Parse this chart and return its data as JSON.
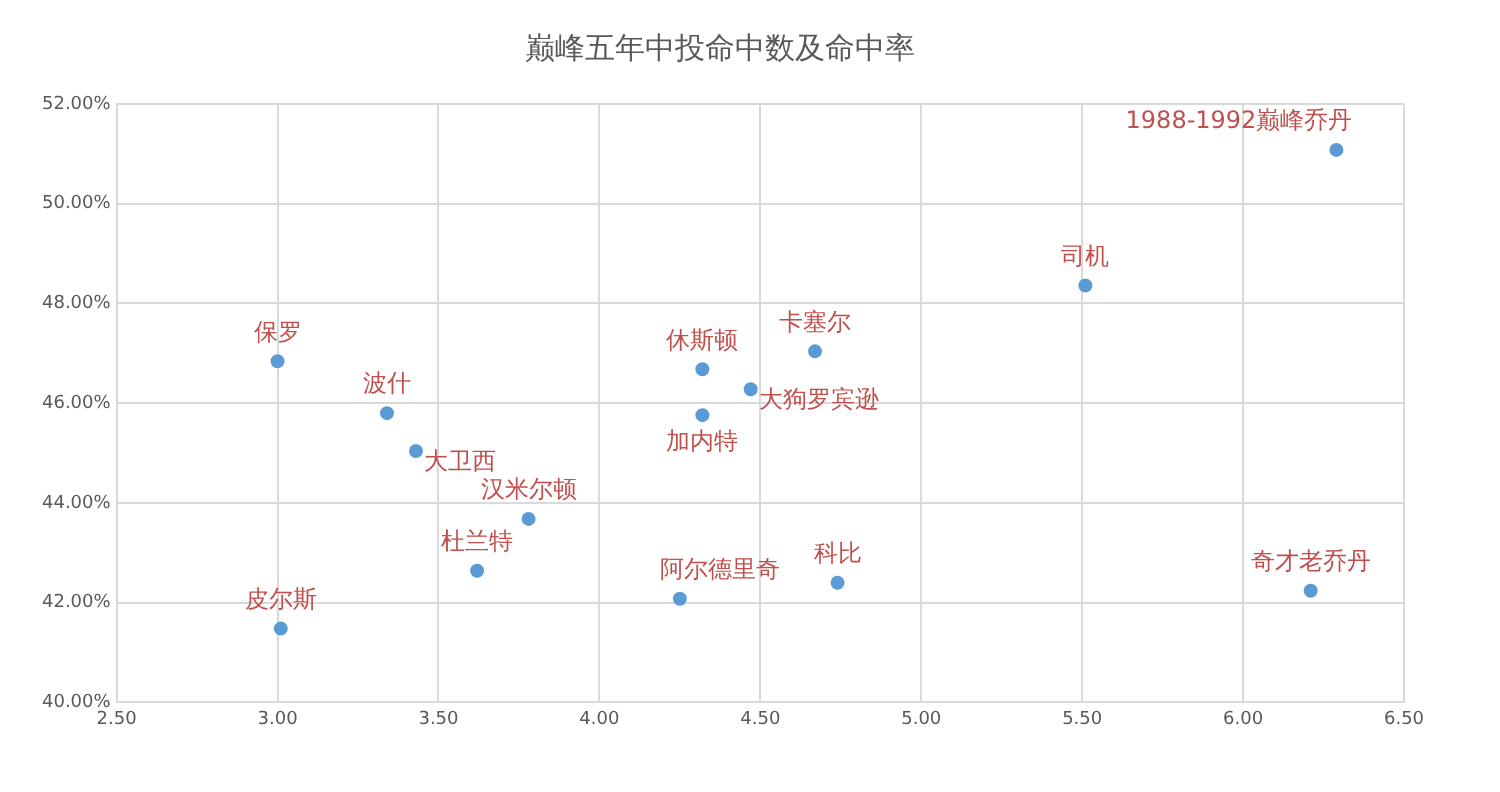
{
  "chart_data": {
    "type": "scatter",
    "title": "巅峰五年中投命中数及命中率",
    "x": [
      3.0,
      3.34,
      3.43,
      3.78,
      3.62,
      3.01,
      4.25,
      4.32,
      4.32,
      4.47,
      4.67,
      4.74,
      5.51,
      6.29,
      6.21
    ],
    "values": [
      46.84,
      45.8,
      45.04,
      43.68,
      42.64,
      41.48,
      42.08,
      46.68,
      45.76,
      46.28,
      47.04,
      42.4,
      48.36,
      51.08,
      42.24
    ],
    "color": "#5b9bd5",
    "marker": "circle",
    "grid": true,
    "xlim": [
      2.5,
      6.5
    ],
    "xticks": [
      {
        "value": 2.5,
        "label": "2.50"
      },
      {
        "value": 3,
        "label": "3.00"
      },
      {
        "value": 3.5,
        "label": "3.50"
      },
      {
        "value": 4,
        "label": "4.00"
      },
      {
        "value": 4.5,
        "label": "4.50"
      },
      {
        "value": 5,
        "label": "5.00"
      },
      {
        "value": 5.5,
        "label": "5.50"
      },
      {
        "value": 6,
        "label": "6.00"
      },
      {
        "value": 6.5,
        "label": "6.50"
      }
    ],
    "ylim": [
      40,
      52
    ],
    "yticks": [
      {
        "value": 40,
        "label": "40.00%"
      },
      {
        "value": 42,
        "label": "42.00%"
      },
      {
        "value": 44,
        "label": "44.00%"
      },
      {
        "value": 46,
        "label": "46.00%"
      },
      {
        "value": 48,
        "label": "48.00%"
      },
      {
        "value": 50,
        "label": "50.00%"
      },
      {
        "value": 52,
        "label": "52.00%"
      }
    ],
    "annotations": [
      {
        "text": "保罗",
        "x": 3.0,
        "y": 46.84
      },
      {
        "text": "波什",
        "x": 3.34,
        "y": 45.8
      },
      {
        "text": "大卫西",
        "x": 3.43,
        "y": 45.04
      },
      {
        "text": "汉米尔顿",
        "x": 3.78,
        "y": 43.68
      },
      {
        "text": "杜兰特",
        "x": 3.62,
        "y": 42.64
      },
      {
        "text": "皮尔斯",
        "x": 3.01,
        "y": 41.48
      },
      {
        "text": "阿尔德里奇",
        "x": 4.25,
        "y": 42.08
      },
      {
        "text": "休斯顿",
        "x": 4.32,
        "y": 46.68
      },
      {
        "text": "加内特",
        "x": 4.32,
        "y": 45.76
      },
      {
        "text": "大狗罗宾逊",
        "x": 4.47,
        "y": 46.28
      },
      {
        "text": "卡塞尔",
        "x": 4.67,
        "y": 47.04
      },
      {
        "text": "科比",
        "x": 4.74,
        "y": 42.4
      },
      {
        "text": "司机",
        "x": 5.51,
        "y": 48.36
      },
      {
        "text": "1988-1992巅峰乔丹",
        "x": 6.29,
        "y": 51.08
      },
      {
        "text": "奇才老乔丹",
        "x": 6.21,
        "y": 42.24
      }
    ]
  }
}
